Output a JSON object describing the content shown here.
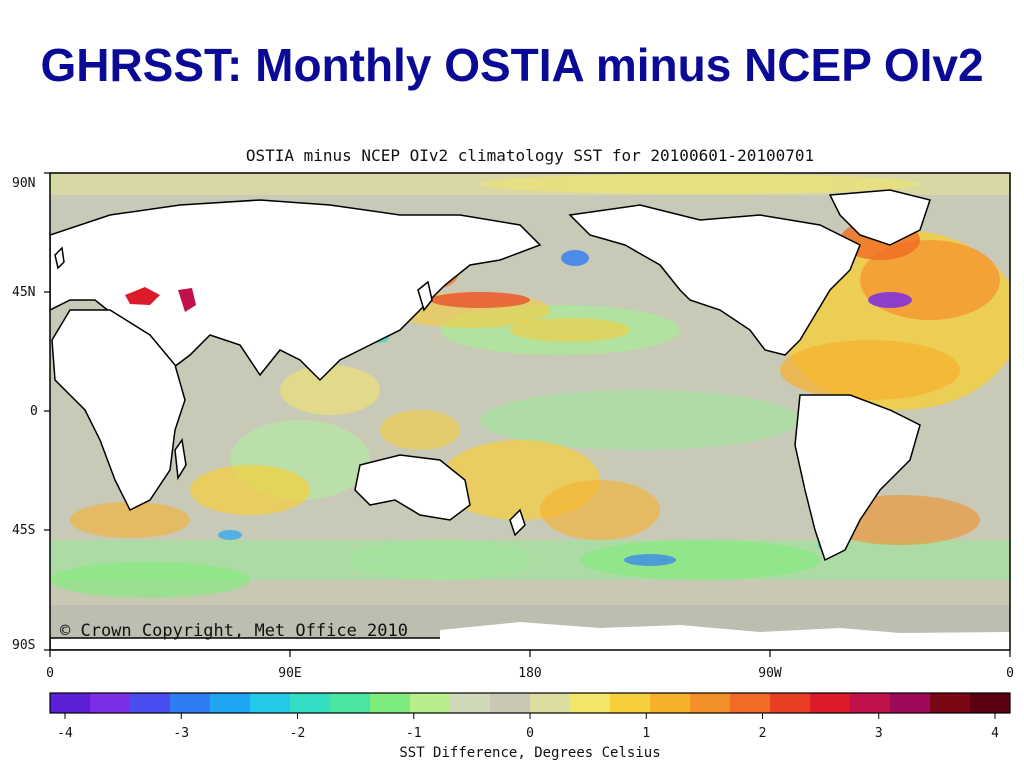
{
  "slide": {
    "title": "GHRSST: Monthly OSTIA minus NCEP OIv2"
  },
  "map": {
    "title": "OSTIA minus NCEP OIv2 climatology SST for 20100601-20100701",
    "copyright": "© Crown Copyright, Met Office 2010",
    "lat_labels": [
      "90N",
      "45N",
      "0",
      "45S",
      "90S"
    ],
    "lon_labels": [
      "0",
      "90E",
      "180",
      "90W",
      "0"
    ],
    "land_color": "#ffffff",
    "ocean_base_color": "#c9c9b8"
  },
  "colorbar": {
    "title": "SST Difference, Degrees Celsius",
    "tick_labels": [
      "-4",
      "-3",
      "-2",
      "-1",
      "0",
      "1",
      "2",
      "3",
      "4"
    ],
    "min": -4,
    "max": 4,
    "colors": [
      "#5b1fd6",
      "#7b2ee6",
      "#4a4df0",
      "#2f7cf5",
      "#1fa6f2",
      "#25c8e6",
      "#34dcc4",
      "#48e6a0",
      "#7eec7c",
      "#b6ef8a",
      "#cfd8b8",
      "#c8c8b4",
      "#dcdca0",
      "#f2e66a",
      "#f6cf3c",
      "#f6b12a",
      "#f4902a",
      "#f06c24",
      "#ea3e22",
      "#dc1a2a",
      "#c0114a",
      "#9e0a5a",
      "#7a0616",
      "#5a0010"
    ]
  }
}
